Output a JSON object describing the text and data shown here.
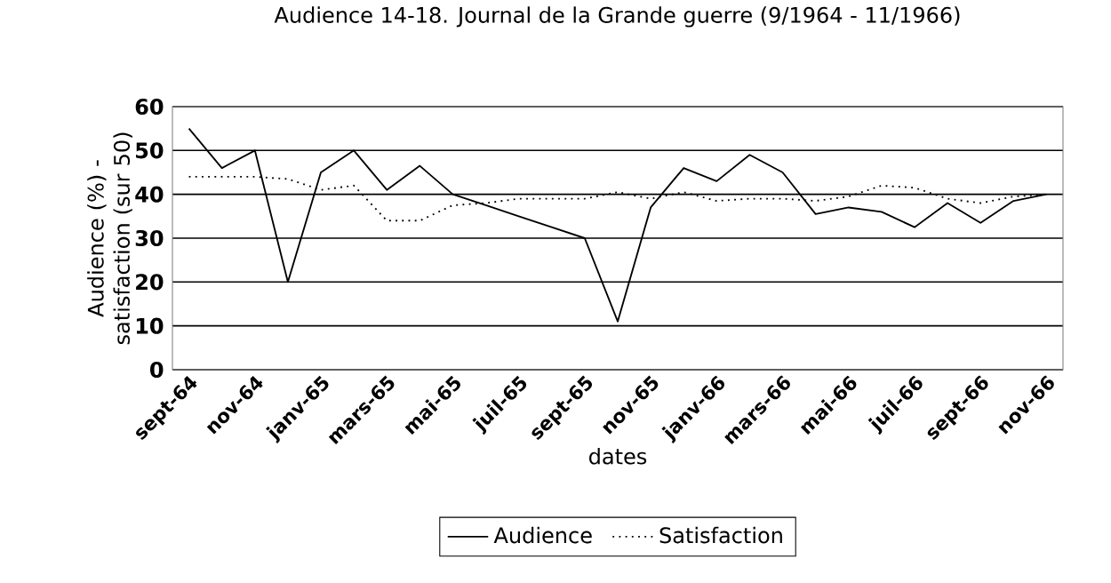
{
  "chart_data": {
    "type": "line",
    "title": "Audience 14-18. Journal de la Grande guerre (9/1964 - 11/1966)",
    "xlabel": "dates",
    "ylabel": "Audience (%) - satisfaction (sur 50)",
    "categories": [
      "sept-64",
      null,
      "nov-64",
      null,
      "janv-65",
      null,
      "mars-65",
      null,
      "mai-65",
      null,
      "juil-65",
      null,
      "sept-65",
      null,
      "nov-65",
      null,
      "janv-66",
      null,
      "mars-66",
      null,
      "mai-66",
      null,
      "juil-66",
      null,
      "sept-66",
      null,
      "nov-66"
    ],
    "series": [
      {
        "name": "Audience",
        "color": "#000000",
        "line_style": "solid",
        "values": [
          55,
          46,
          50,
          20,
          45,
          50,
          41,
          46.5,
          40,
          37.5,
          35,
          32.5,
          30,
          11,
          37,
          46,
          43,
          49,
          45,
          35.5,
          37,
          36,
          32.5,
          38,
          33.5,
          38.5,
          40
        ]
      },
      {
        "name": "Satisfaction",
        "color": "#000000",
        "line_style": "dotted",
        "values": [
          44,
          44,
          44,
          43.5,
          41,
          42,
          34,
          34,
          37.5,
          38,
          39,
          39,
          39,
          40.5,
          39,
          40.5,
          38.5,
          39,
          39,
          38.5,
          39.5,
          42,
          41.5,
          39,
          38,
          39.5,
          40
        ]
      }
    ],
    "ylim": [
      0,
      60
    ],
    "yticks": [
      0,
      10,
      20,
      30,
      40,
      50,
      60
    ],
    "grid": "y",
    "legend": "bottom"
  }
}
